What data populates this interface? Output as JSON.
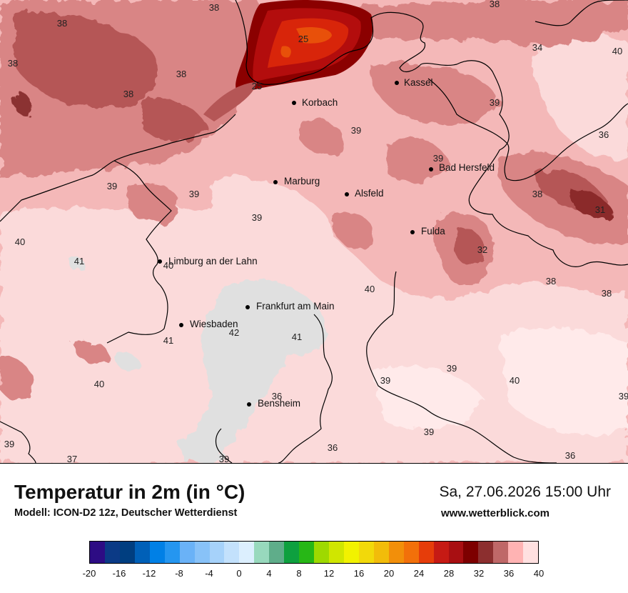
{
  "footer": {
    "title": "Temperatur in 2m (in °C)",
    "model_line": "Modell: ICON-D2 12z, Deutscher Wetterdienst",
    "datetime": "Sa, 27.06.2026 15:00 Uhr",
    "website": "www.wetterblick.com"
  },
  "cities": [
    {
      "name": "Kassel"
    },
    {
      "name": "Korbach"
    },
    {
      "name": "Bad Hersfeld"
    },
    {
      "name": "Marburg"
    },
    {
      "name": "Alsfeld"
    },
    {
      "name": "Fulda"
    },
    {
      "name": "Limburg an der Lahn"
    },
    {
      "name": "Frankfurt am Main"
    },
    {
      "name": "Wiesbaden"
    },
    {
      "name": "Bensheim"
    }
  ],
  "value_labels": [
    "38",
    "38",
    "38",
    "38",
    "38",
    "34",
    "40",
    "25",
    "25",
    "39",
    "36",
    "39",
    "39",
    "39",
    "39",
    "38",
    "31",
    "40",
    "39",
    "41",
    "40",
    "32",
    "38",
    "38",
    "40",
    "42",
    "41",
    "41",
    "39",
    "39",
    "40",
    "40",
    "36",
    "39",
    "39",
    "36",
    "39",
    "36",
    "37",
    "39"
  ],
  "legend": {
    "colors": [
      "#2d0c84",
      "#0b3a86",
      "#003e80",
      "#0060b8",
      "#0080e6",
      "#2596f0",
      "#6ab2f7",
      "#88c2f8",
      "#a6d2fa",
      "#c3e1fc",
      "#dceffe",
      "#98d9bd",
      "#5fad8a",
      "#0ea03f",
      "#27b716",
      "#9ed900",
      "#d0e600",
      "#f2f200",
      "#f2d90a",
      "#f2bc0a",
      "#f28f0a",
      "#f2700a",
      "#e63d0a",
      "#c61a14",
      "#a80f12",
      "#7d0000",
      "#8c2f2f",
      "#bf6868",
      "#ffb3b3",
      "#ffe0e0"
    ],
    "tick_labels": [
      "-20",
      "-16",
      "-12",
      "-8",
      "-4",
      "0",
      "4",
      "8",
      "12",
      "16",
      "20",
      "24",
      "28",
      "32",
      "36",
      "40"
    ]
  },
  "colors": {
    "base": "#f4b8b8",
    "light": "#fbdada",
    "pale": "#ffeaea",
    "mid": "#d98585",
    "dark": "#b55656",
    "hot1": "#8b0000",
    "hot2": "#b30d0d",
    "hot3": "#d8250a",
    "hot4": "#e8500a",
    "grey": "#e0e0e0"
  }
}
